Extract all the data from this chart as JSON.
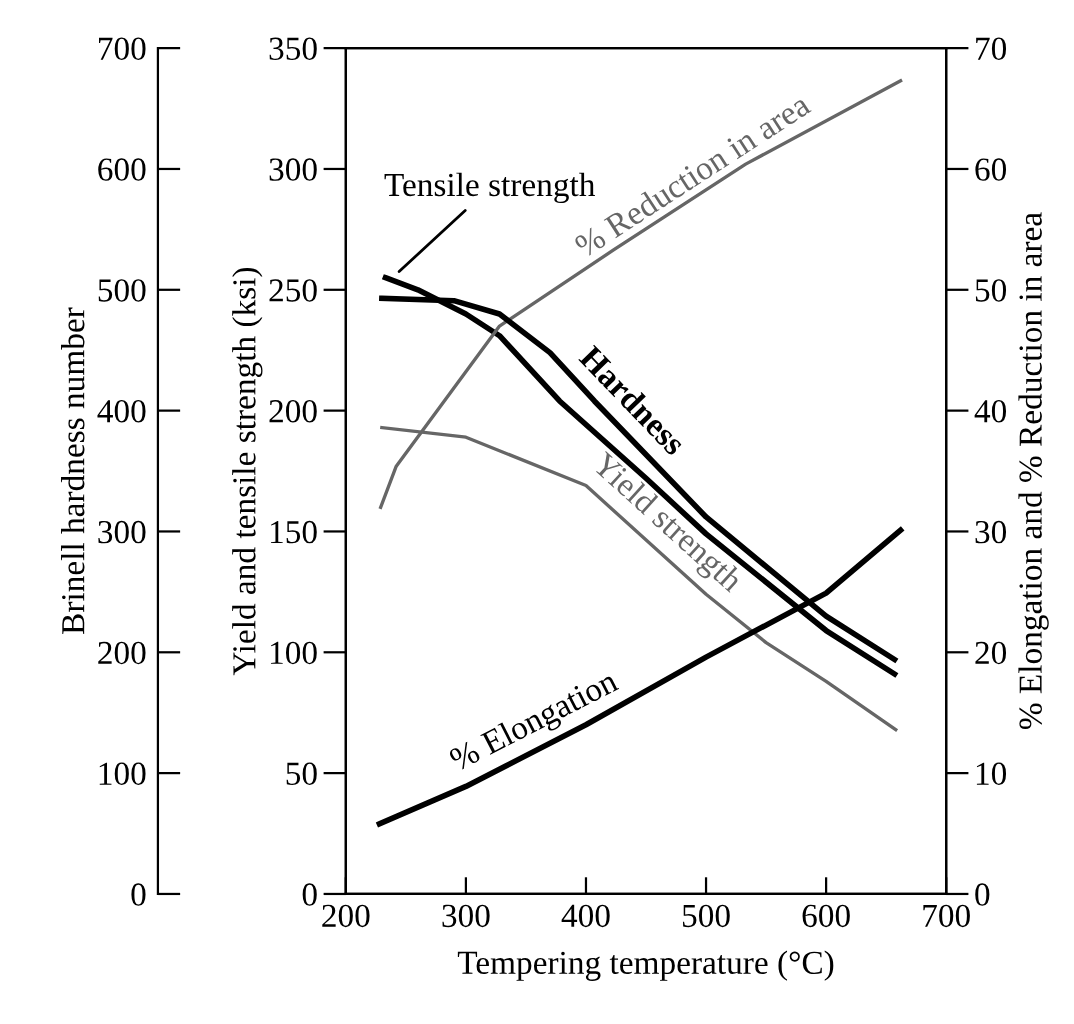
{
  "chart_data": {
    "type": "line",
    "xlabel": "Tempering temperature (°C)",
    "ylabel": "Yield and tensile strength (ksi)",
    "y2label": "% Elongation and % Reduction in area",
    "y3label": "Brinell hardness number",
    "xlim": [
      200,
      700
    ],
    "xticks": [
      200,
      300,
      400,
      500,
      600,
      700
    ],
    "ylim": [
      0,
      350
    ],
    "yticks": [
      0,
      50,
      100,
      150,
      200,
      250,
      300,
      350
    ],
    "y2lim": [
      0,
      70
    ],
    "y2ticks": [
      0,
      10,
      20,
      30,
      40,
      50,
      60,
      70
    ],
    "y3lim": [
      0,
      700
    ],
    "y3ticks": [
      0,
      100,
      200,
      300,
      400,
      500,
      600,
      700
    ],
    "grid": false,
    "marker": "none",
    "line_style": "solid",
    "series": [
      {
        "name": "Tensile strength",
        "color": "#000000",
        "x": [
          233,
          260,
          300,
          328,
          378,
          450,
          500,
          600,
          657
        ],
        "values": [
          255,
          250,
          240,
          231,
          204,
          172,
          149,
          109,
          91
        ]
      },
      {
        "name": "Hardness",
        "color": "#000000",
        "axis": "y3",
        "x": [
          230,
          290,
          328,
          370,
          407,
          500,
          600,
          657
        ],
        "values": [
          493,
          491,
          480,
          448,
          408,
          312,
          230,
          194
        ]
      },
      {
        "name": "Yield strength",
        "color": "#666666",
        "x": [
          230,
          300,
          400,
          500,
          550,
          600,
          658
        ],
        "values": [
          193,
          189,
          169,
          124,
          104,
          88,
          68
        ]
      },
      {
        "name": "% Elongation",
        "color": "#000000",
        "axis": "y2",
        "x": [
          228,
          300,
          400,
          500,
          600,
          662
        ],
        "values": [
          5.8,
          8.9,
          14,
          19.6,
          24.9,
          30.1
        ]
      },
      {
        "name": "% Reduction in area",
        "color": "#666666",
        "axis": "y2",
        "x": [
          229,
          242,
          328,
          423,
          533,
          662
        ],
        "values": [
          32,
          35.4,
          47,
          53.3,
          60.4,
          67.3
        ]
      }
    ]
  }
}
